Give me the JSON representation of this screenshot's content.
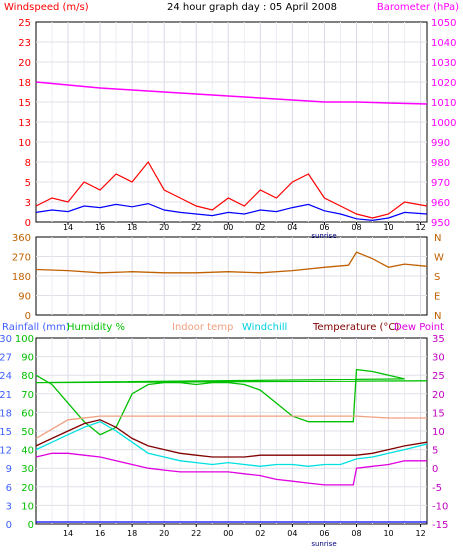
{
  "title": "24 hour graph day : 05 April 2008",
  "sunrise_label": "sunrise",
  "chart_data": [
    {
      "type": "line",
      "name_left": "Windspeed (m/s)",
      "name_right": "Barometer (hPa)",
      "y_left_ticks": [
        "25",
        "23",
        "20",
        "18",
        "15",
        "13",
        "10",
        "8",
        "5",
        "3",
        "0"
      ],
      "y_right_ticks": [
        "1050",
        "1040",
        "1030",
        "1020",
        "1010",
        "1000",
        "990",
        "980",
        "970",
        "960",
        "950"
      ],
      "ylim_left": [
        0,
        25
      ],
      "ylim_right": [
        950,
        1050
      ],
      "x_ticks": [
        "14",
        "16",
        "18",
        "20",
        "22",
        "00",
        "02",
        "04",
        "06",
        "08",
        "10",
        "12"
      ],
      "series": [
        {
          "name": "Barometer (hPa)",
          "axis": "right",
          "color": "#ff00ff",
          "x": [
            12,
            14,
            16,
            18,
            20,
            22,
            0,
            2,
            4,
            6,
            8,
            10,
            12.4
          ],
          "values": [
            1020,
            1018.5,
            1017,
            1016,
            1015,
            1014,
            1013,
            1012,
            1011,
            1010,
            1010,
            1009.5,
            1009
          ]
        },
        {
          "name": "Wind gust",
          "axis": "left",
          "color": "#ff0000",
          "x": [
            12,
            13,
            14,
            15,
            16,
            17,
            18,
            19,
            20,
            21,
            22,
            23,
            0,
            1,
            2,
            3,
            4,
            5,
            6,
            7,
            8,
            9,
            10,
            11,
            12.4
          ],
          "values": [
            2,
            3,
            2.5,
            5,
            4,
            6,
            5,
            7.5,
            4,
            3,
            2,
            1.5,
            3,
            2,
            4,
            3,
            5,
            6,
            3,
            2,
            1,
            0.5,
            1,
            2.5,
            2
          ]
        },
        {
          "name": "Wind average",
          "axis": "left",
          "color": "#0000ff",
          "x": [
            12,
            13,
            14,
            15,
            16,
            17,
            18,
            19,
            20,
            21,
            22,
            23,
            0,
            1,
            2,
            3,
            4,
            5,
            6,
            7,
            8,
            9,
            10,
            11,
            12.4
          ],
          "values": [
            1.2,
            1.5,
            1.3,
            2,
            1.8,
            2.2,
            1.9,
            2.3,
            1.5,
            1.2,
            1,
            0.8,
            1.2,
            1,
            1.5,
            1.3,
            1.8,
            2.2,
            1.4,
            1,
            0.4,
            0.2,
            0.5,
            1.2,
            1
          ]
        }
      ]
    },
    {
      "type": "line",
      "name": "Wind direction",
      "y_left_ticks": [
        "360",
        "270",
        "180",
        "90",
        "0"
      ],
      "y_right_ticks": [
        "N",
        "W",
        "S",
        "E",
        "N"
      ],
      "ylim_left": [
        0,
        360
      ],
      "x_ticks": [
        "14",
        "16",
        "18",
        "20",
        "22",
        "00",
        "02",
        "04",
        "06",
        "08",
        "10",
        "12"
      ],
      "series": [
        {
          "name": "Direction",
          "color": "#c06000",
          "x": [
            12,
            14,
            16,
            18,
            20,
            22,
            0,
            2,
            4,
            6,
            7.5,
            8,
            9,
            10,
            11,
            12.4
          ],
          "values": [
            210,
            205,
            195,
            200,
            195,
            195,
            200,
            195,
            205,
            220,
            230,
            290,
            260,
            220,
            235,
            225
          ]
        }
      ]
    },
    {
      "type": "line",
      "legend": [
        "Rainfall (mm)",
        "Humidity %",
        "Indoor temp",
        "Windchill",
        "Temperature (°C)",
        "Dew Point"
      ],
      "y_left_rain_ticks": [
        "30",
        "27",
        "24",
        "21",
        "18",
        "15",
        "12",
        "9",
        "6",
        "3",
        "0"
      ],
      "y_left_hum_ticks": [
        "100",
        "90",
        "80",
        "70",
        "60",
        "50",
        "40",
        "30",
        "20",
        "10",
        "0"
      ],
      "y_right_temp_ticks": [
        "35",
        "30",
        "25",
        "20",
        "15",
        "10",
        "5",
        "0",
        "-5",
        "-10",
        "-15"
      ],
      "ylim_humidity": [
        0,
        100
      ],
      "ylim_temp": [
        -15,
        35
      ],
      "x_ticks": [
        "14",
        "16",
        "18",
        "20",
        "22",
        "00",
        "02",
        "04",
        "06",
        "08",
        "10",
        "12"
      ],
      "series": [
        {
          "name": "Humidity %",
          "axis": "hum",
          "color": "#00c000",
          "x": [
            12,
            13,
            14,
            15,
            16,
            17,
            18,
            19,
            20,
            21,
            22,
            23,
            0,
            1,
            2,
            3,
            4,
            5,
            6,
            7,
            7.8,
            8,
            9,
            10,
            11,
            12,
            12.4
          ],
          "values": [
            80,
            75,
            65,
            55,
            48,
            52,
            70,
            75,
            76,
            76,
            75,
            76,
            76,
            75,
            72,
            65,
            58,
            55,
            55,
            55,
            55,
            83,
            82,
            80,
            78,
            76,
            77
          ]
        },
        {
          "name": "Indoor temp",
          "axis": "temp",
          "color": "#f0a080",
          "x": [
            12,
            14,
            16,
            18,
            20,
            22,
            0,
            2,
            4,
            6,
            8,
            10,
            12.4
          ],
          "values": [
            8,
            13,
            14,
            14,
            14,
            14,
            14,
            14,
            14,
            14,
            14,
            13.5,
            13.5
          ]
        },
        {
          "name": "Temperature (°C)",
          "axis": "temp",
          "color": "#800000",
          "x": [
            12,
            13,
            14,
            15,
            16,
            17,
            18,
            19,
            20,
            21,
            22,
            23,
            0,
            1,
            2,
            3,
            4,
            5,
            6,
            7,
            8,
            9,
            10,
            11,
            12.4
          ],
          "values": [
            6,
            8,
            10,
            12,
            13,
            11,
            8,
            6,
            5,
            4,
            3.5,
            3,
            3,
            3,
            3.5,
            3.5,
            3.5,
            3.5,
            3.5,
            3.5,
            3.5,
            4,
            5,
            6,
            7
          ]
        },
        {
          "name": "Windchill",
          "axis": "temp",
          "color": "#00e0e0",
          "x": [
            12,
            13,
            14,
            15,
            16,
            17,
            18,
            19,
            20,
            21,
            22,
            23,
            0,
            1,
            2,
            3,
            4,
            5,
            6,
            7,
            8,
            9,
            10,
            11,
            12.4
          ],
          "values": [
            5,
            7,
            9,
            11,
            12.5,
            10,
            7,
            4,
            3,
            2,
            1.5,
            1,
            1.5,
            1,
            0.5,
            1,
            1,
            0.5,
            1,
            1,
            2.5,
            3,
            4,
            5,
            6.5
          ]
        },
        {
          "name": "Dew Point",
          "axis": "temp",
          "color": "#e000e0",
          "x": [
            12,
            13,
            14,
            15,
            16,
            17,
            18,
            19,
            20,
            21,
            22,
            23,
            0,
            1,
            2,
            3,
            4,
            5,
            6,
            7,
            7.8,
            8,
            9,
            10,
            11,
            12.4
          ],
          "values": [
            3,
            4,
            4,
            3.5,
            3,
            2,
            1,
            0,
            -0.5,
            -1,
            -1,
            -1,
            -1,
            -1.5,
            -2,
            -3,
            -3.5,
            -4,
            -4.5,
            -4.5,
            -4.5,
            0,
            0.5,
            1,
            2,
            2
          ]
        },
        {
          "name": "Rainfall (mm)",
          "axis": "rain",
          "color": "#0000ff",
          "x": [
            12,
            12.4
          ],
          "values": [
            0,
            0
          ]
        }
      ]
    }
  ]
}
